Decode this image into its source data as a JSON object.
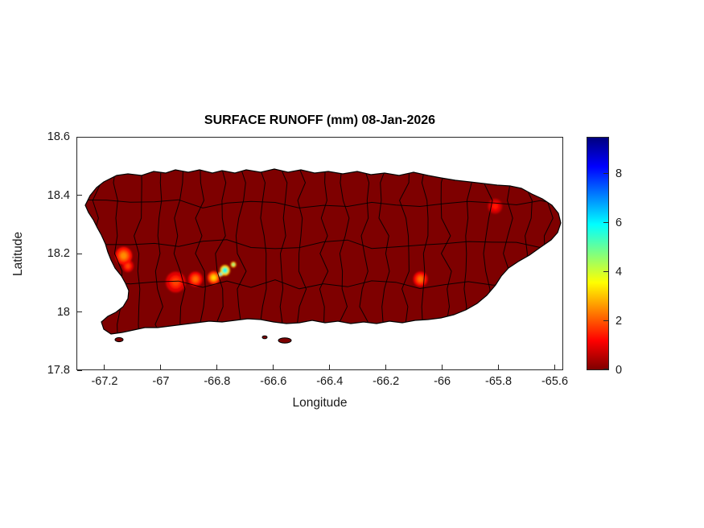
{
  "chart_data": {
    "type": "heatmap",
    "title": "SURFACE RUNOFF (mm) 08-Jan-2026",
    "xlabel": "Longitude",
    "ylabel": "Latitude",
    "xlim": [
      -67.3,
      -65.57
    ],
    "ylim": [
      17.8,
      18.6
    ],
    "xticks": [
      -67.2,
      -67,
      -66.8,
      -66.6,
      -66.4,
      -66.2,
      -66,
      -65.8,
      -65.6
    ],
    "xtick_labels": [
      "-67.2",
      "-67",
      "-66.8",
      "-66.6",
      "-66.4",
      "-66.2",
      "-66",
      "-65.8",
      "-65.6"
    ],
    "yticks": [
      17.8,
      18,
      18.2,
      18.4,
      18.6
    ],
    "ytick_labels": [
      "17.8",
      "18",
      "18.2",
      "18.4",
      "18.6"
    ],
    "grid": false,
    "region": "Puerto Rico with municipality boundaries",
    "base_value": 0,
    "base_color": "#7E0000",
    "boundary_color": "#000000",
    "colorbar": {
      "range": [
        0,
        9.5
      ],
      "ticks": [
        0,
        2,
        4,
        6,
        8
      ],
      "tick_labels": [
        "0",
        "2",
        "4",
        "6",
        "8"
      ],
      "colormap": "jet-reversed",
      "gradient_stops": [
        {
          "color": "#7F0000",
          "pos": 0
        },
        {
          "color": "#FF0000",
          "pos": 0.125
        },
        {
          "color": "#FFFF00",
          "pos": 0.375
        },
        {
          "color": "#00FFFF",
          "pos": 0.625
        },
        {
          "color": "#0000FF",
          "pos": 0.875
        },
        {
          "color": "#00007F",
          "pos": 1
        }
      ]
    },
    "hotspots": [
      {
        "lon": -67.135,
        "lat": 18.195,
        "value": 2.5,
        "radius_deg": 0.03
      },
      {
        "lon": -67.12,
        "lat": 18.16,
        "value": 1.8,
        "radius_deg": 0.02
      },
      {
        "lon": -66.95,
        "lat": 18.105,
        "value": 1.8,
        "radius_deg": 0.035
      },
      {
        "lon": -66.88,
        "lat": 18.115,
        "value": 2.2,
        "radius_deg": 0.025
      },
      {
        "lon": -66.815,
        "lat": 18.12,
        "value": 3.2,
        "radius_deg": 0.022
      },
      {
        "lon": -66.79,
        "lat": 18.132,
        "value": 7.0,
        "radius_deg": 0.008
      },
      {
        "lon": -66.775,
        "lat": 18.145,
        "value": 6.0,
        "radius_deg": 0.018
      },
      {
        "lon": -66.745,
        "lat": 18.165,
        "value": 5.0,
        "radius_deg": 0.01
      },
      {
        "lon": -66.08,
        "lat": 18.115,
        "value": 2.2,
        "radius_deg": 0.025
      },
      {
        "lon": -65.815,
        "lat": 18.365,
        "value": 1.4,
        "radius_deg": 0.025
      }
    ]
  }
}
